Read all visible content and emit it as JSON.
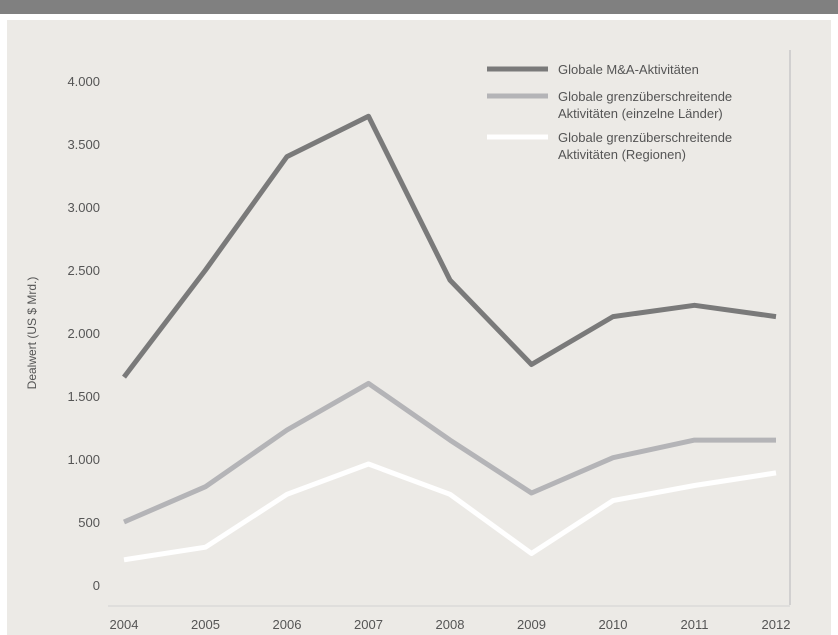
{
  "chart_data": {
    "type": "line",
    "ylabel": "Dealwert (US $ Mrd.)",
    "xlabel": "",
    "categories": [
      "2004",
      "2005",
      "2006",
      "2007",
      "2008",
      "2009",
      "2010",
      "2011",
      "2012"
    ],
    "ylim": [
      0,
      4000
    ],
    "yticks": [
      0,
      500,
      1000,
      1500,
      2000,
      2500,
      3000,
      3500,
      4000
    ],
    "ytick_labels": [
      "0",
      "500",
      "1.000",
      "1.500",
      "2.000",
      "2.500",
      "3.000",
      "3.500",
      "4.000"
    ],
    "grid": false,
    "legend_position": "top-right",
    "series": [
      {
        "name": "Globale M&A-Aktivitäten",
        "color": "#7a7a7a",
        "values": [
          1650,
          2500,
          3400,
          3720,
          2420,
          1750,
          2130,
          2220,
          2130
        ]
      },
      {
        "name": "Globale grenzüberschreitende Aktivitäten (einzelne Länder)",
        "legend_lines": [
          "Globale grenzüberschreitende",
          "Aktivitäten (einzelne Länder)"
        ],
        "color": "#b4b4b7",
        "values": [
          500,
          780,
          1230,
          1600,
          1150,
          730,
          1010,
          1150,
          1150
        ]
      },
      {
        "name": "Globale grenzüberschreitende Aktivitäten (Regionen)",
        "legend_lines": [
          "Globale grenzüberschreitende",
          "Aktivitäten (Regionen)"
        ],
        "color": "#ffffff",
        "values": [
          200,
          300,
          720,
          960,
          720,
          250,
          670,
          790,
          890
        ]
      }
    ]
  }
}
